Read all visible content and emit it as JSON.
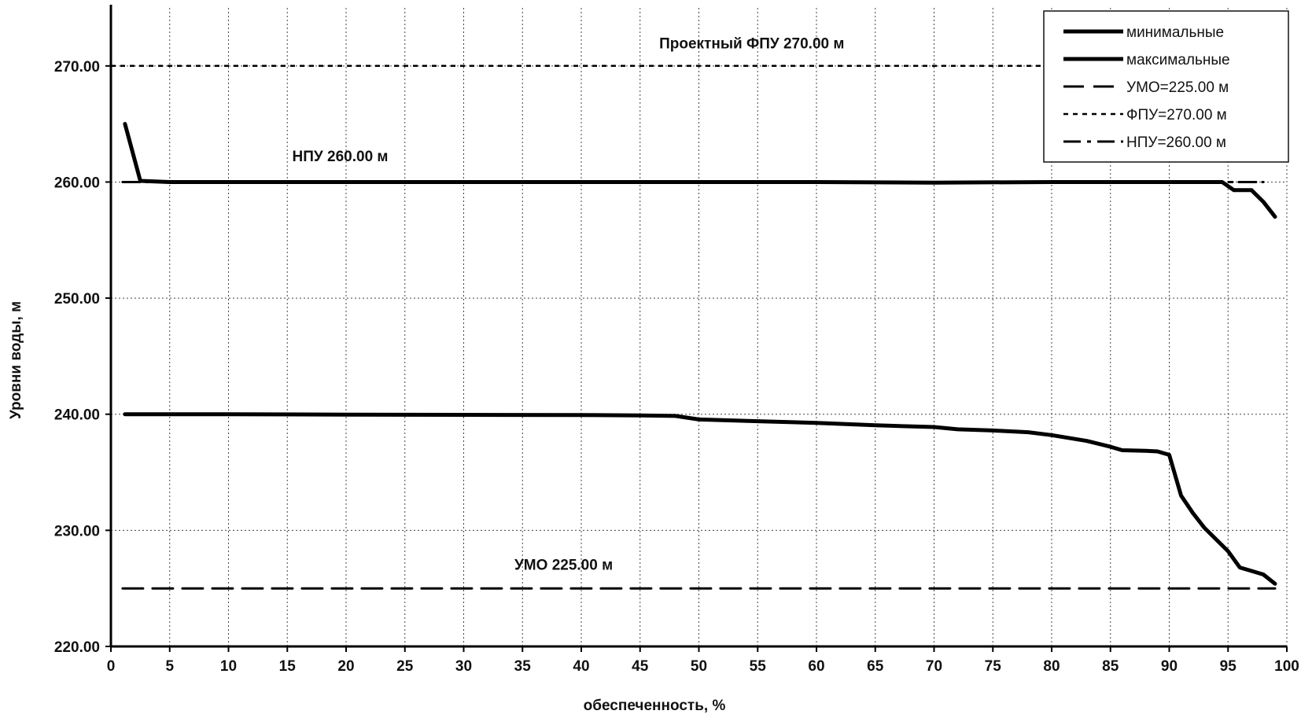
{
  "chart_data": {
    "type": "line",
    "title": "",
    "xlabel": "обеспеченность, %",
    "ylabel": "Уровни воды, м",
    "xlim": [
      0,
      100
    ],
    "ylim": [
      220,
      275
    ],
    "grid": true,
    "x_ticks": [
      0,
      5,
      10,
      15,
      20,
      25,
      30,
      35,
      40,
      45,
      50,
      55,
      60,
      65,
      70,
      75,
      80,
      85,
      90,
      95,
      100
    ],
    "x_tick_labels": [
      "0",
      "5",
      "10",
      "15",
      "20",
      "25",
      "30",
      "35",
      "40",
      "45",
      "50",
      "55",
      "60",
      "65",
      "70",
      "75",
      "80",
      "85",
      "90",
      "95",
      "100"
    ],
    "y_ticks": [
      220,
      230,
      240,
      250,
      260,
      270
    ],
    "y_tick_labels": [
      "220.00",
      "230.00",
      "240.00",
      "250.00",
      "260.00",
      "270.00"
    ],
    "legend_position": "top-right",
    "series": [
      {
        "name": "минимальные",
        "style": "solid",
        "x": [
          1.2,
          5,
          10,
          20,
          30,
          40,
          45,
          48,
          50,
          55,
          60,
          65,
          70,
          72,
          75,
          78,
          80,
          83,
          85,
          86,
          88,
          89,
          90,
          91,
          92,
          93,
          95,
          96,
          97,
          98,
          99
        ],
        "y": [
          240.0,
          240.0,
          240.0,
          239.97,
          239.95,
          239.93,
          239.9,
          239.85,
          239.55,
          239.4,
          239.25,
          239.05,
          238.9,
          238.7,
          238.6,
          238.45,
          238.2,
          237.7,
          237.2,
          236.9,
          236.85,
          236.8,
          236.5,
          233.0,
          231.5,
          230.2,
          228.2,
          226.8,
          226.5,
          226.2,
          225.4
        ]
      },
      {
        "name": "максимальные",
        "style": "solid",
        "x": [
          1.2,
          2.5,
          5,
          10,
          20,
          30,
          40,
          50,
          60,
          70,
          80,
          90,
          94.5,
          95.5,
          97,
          98,
          99
        ],
        "y": [
          265.0,
          260.1,
          260.0,
          260.0,
          260.0,
          260.0,
          260.0,
          260.0,
          260.0,
          259.95,
          260.0,
          260.0,
          260.0,
          259.3,
          259.3,
          258.3,
          257.0
        ]
      },
      {
        "name": "УМО=225.00 м",
        "style": "dash",
        "x": [
          1,
          99
        ],
        "y": [
          225.0,
          225.0
        ]
      },
      {
        "name": "ФПУ=270.00 м",
        "style": "dot",
        "x": [
          0,
          100
        ],
        "y": [
          270.0,
          270.0
        ]
      },
      {
        "name": "НПУ=260.00 м",
        "style": "dashdot",
        "x": [
          1,
          98
        ],
        "y": [
          260.0,
          260.0
        ]
      }
    ],
    "annotations": [
      {
        "text": "Проектный ФПУ 270.00 м",
        "x": 54.5,
        "y": 271.5
      },
      {
        "text": "НПУ 260.00 м",
        "x": 19.5,
        "y": 261.8
      },
      {
        "text": "УМО 225.00 м",
        "x": 38.5,
        "y": 226.6
      }
    ]
  }
}
